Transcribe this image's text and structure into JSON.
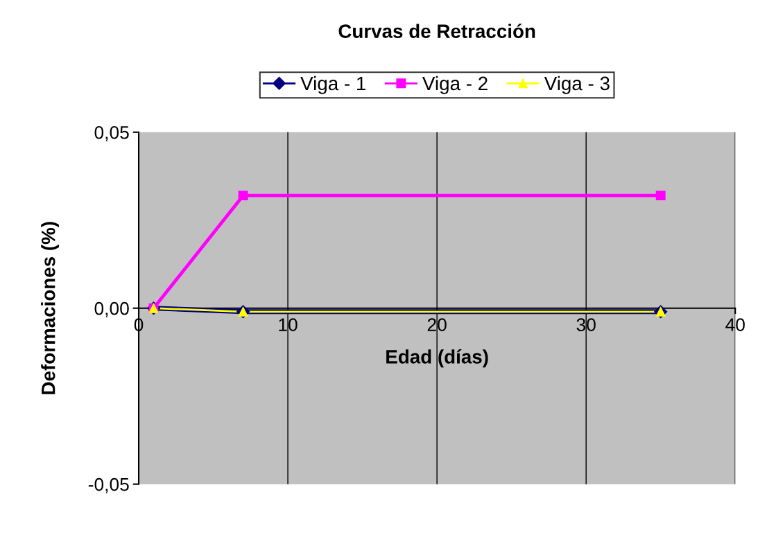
{
  "chart_data": {
    "type": "line",
    "title": "Curvas de Retracción",
    "xlabel": "Edad (días)",
    "ylabel": "Deformaciones (%)",
    "x": [
      1,
      7,
      35
    ],
    "series": [
      {
        "name": "Viga - 1",
        "color": "#000080",
        "marker": "diamond",
        "values": [
          0,
          -0.001,
          -0.001
        ]
      },
      {
        "name": "Viga - 2",
        "color": "#ff00ff",
        "marker": "square",
        "values": [
          0,
          0.032,
          0.032
        ]
      },
      {
        "name": "Viga - 3",
        "color": "#ffff00",
        "marker": "triangle",
        "values": [
          0,
          -0.001,
          -0.001
        ]
      }
    ],
    "xlim": [
      0,
      40
    ],
    "xticks": [
      0,
      10,
      20,
      30,
      40
    ],
    "ylim": [
      -0.05,
      0.05
    ],
    "yticks": [
      {
        "value": -0.05,
        "label": "-0,05"
      },
      {
        "value": 0,
        "label": "0,00"
      },
      {
        "value": 0.05,
        "label": "0,05"
      }
    ],
    "grid": "x",
    "legend": "top",
    "line_style": "solid"
  }
}
